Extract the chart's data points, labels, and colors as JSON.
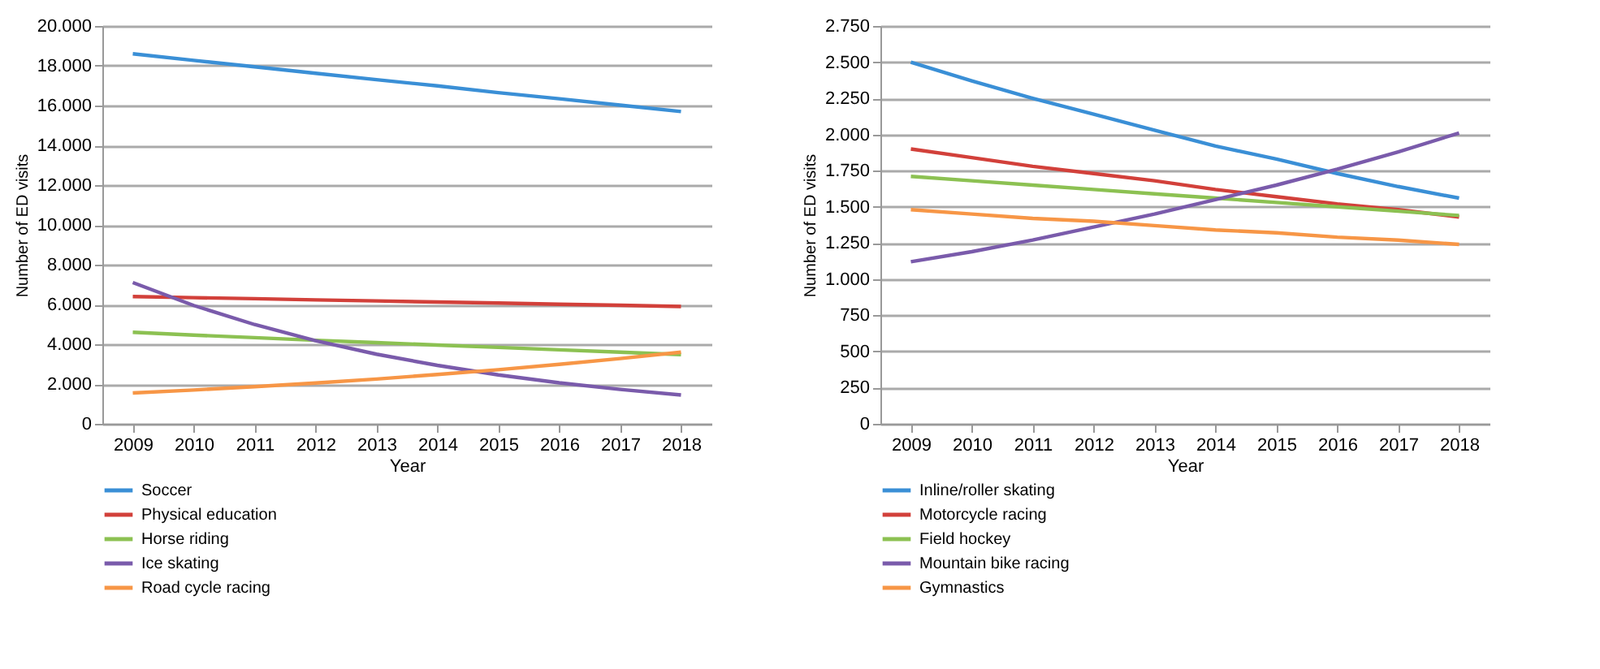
{
  "chart_data": [
    {
      "type": "line",
      "xlabel": "Year",
      "ylabel": "Number of ED visits",
      "categories": [
        "2009",
        "2010",
        "2011",
        "2012",
        "2013",
        "2014",
        "2015",
        "2016",
        "2017",
        "2018"
      ],
      "series": [
        {
          "name": "Soccer",
          "color": "#3a8fd6",
          "values": [
            18600,
            18270,
            17950,
            17620,
            17300,
            16990,
            16650,
            16340,
            16020,
            15700
          ]
        },
        {
          "name": "Physical education",
          "color": "#d2403a",
          "values": [
            6400,
            6340,
            6290,
            6230,
            6180,
            6120,
            6070,
            6010,
            5960,
            5900
          ]
        },
        {
          "name": "Horse riding",
          "color": "#8cc152",
          "values": [
            4600,
            4460,
            4330,
            4200,
            4080,
            3960,
            3840,
            3720,
            3600,
            3480
          ]
        },
        {
          "name": "Ice skating",
          "color": "#7a5bab",
          "values": [
            7100,
            5950,
            4990,
            4180,
            3500,
            2940,
            2460,
            2060,
            1730,
            1450
          ]
        },
        {
          "name": "Road cycle racing",
          "color": "#f79646",
          "values": [
            1550,
            1700,
            1870,
            2050,
            2250,
            2480,
            2720,
            2990,
            3280,
            3600
          ]
        }
      ],
      "ylim": [
        0,
        20000
      ],
      "yticks": [
        {
          "value": 0,
          "label": "0"
        },
        {
          "value": 2000,
          "label": "2.000"
        },
        {
          "value": 4000,
          "label": "4.000"
        },
        {
          "value": 6000,
          "label": "6.000"
        },
        {
          "value": 8000,
          "label": "8.000"
        },
        {
          "value": 10000,
          "label": "10.000"
        },
        {
          "value": 12000,
          "label": "12.000"
        },
        {
          "value": 14000,
          "label": "14.000"
        },
        {
          "value": 16000,
          "label": "16.000"
        },
        {
          "value": 18000,
          "label": "18.000"
        },
        {
          "value": 20000,
          "label": "20.000"
        }
      ],
      "grid": "y",
      "legend": "bottom",
      "line_style": "solid",
      "marker": "none"
    },
    {
      "type": "line",
      "xlabel": "Year",
      "ylabel": "Number of ED visits",
      "categories": [
        "2009",
        "2010",
        "2011",
        "2012",
        "2013",
        "2014",
        "2015",
        "2016",
        "2017",
        "2018"
      ],
      "series": [
        {
          "name": "Inline/roller skating",
          "color": "#3a8fd6",
          "values": [
            2500,
            2370,
            2250,
            2140,
            2030,
            1920,
            1830,
            1730,
            1640,
            1560
          ]
        },
        {
          "name": "Motorcycle racing",
          "color": "#d2403a",
          "values": [
            1900,
            1840,
            1780,
            1730,
            1680,
            1620,
            1570,
            1520,
            1480,
            1430
          ]
        },
        {
          "name": "Field hockey",
          "color": "#8cc152",
          "values": [
            1710,
            1680,
            1650,
            1620,
            1590,
            1560,
            1530,
            1500,
            1470,
            1440
          ]
        },
        {
          "name": "Mountain bike racing",
          "color": "#7a5bab",
          "values": [
            1120,
            1190,
            1270,
            1360,
            1450,
            1550,
            1650,
            1760,
            1880,
            2010
          ]
        },
        {
          "name": "Gymnastics",
          "color": "#f79646",
          "values": [
            1480,
            1450,
            1420,
            1400,
            1370,
            1340,
            1320,
            1290,
            1270,
            1240
          ]
        }
      ],
      "ylim": [
        0,
        2750
      ],
      "yticks": [
        0,
        250,
        500,
        750,
        {
          "value": 1000,
          "label": "1.000"
        },
        {
          "value": 1250,
          "label": "1.250"
        },
        {
          "value": 1500,
          "label": "1.500"
        },
        {
          "value": 1750,
          "label": "1.750"
        },
        {
          "value": 2000,
          "label": "2.000"
        },
        {
          "value": 2250,
          "label": "2.250"
        },
        {
          "value": 2500,
          "label": "2.500"
        },
        {
          "value": 2750,
          "label": "2.750"
        }
      ],
      "grid": "y",
      "legend": "bottom",
      "line_style": "solid",
      "marker": "none"
    }
  ]
}
